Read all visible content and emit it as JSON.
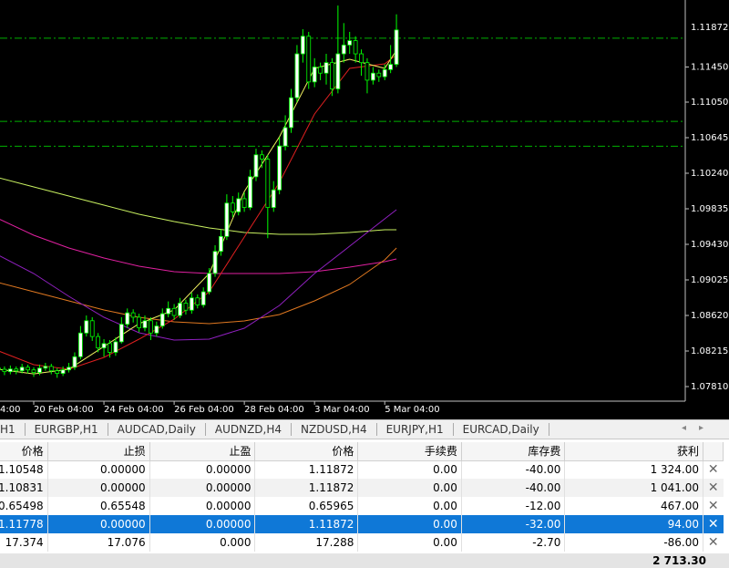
{
  "chart_data": {
    "type": "candlestick",
    "open": [
      1.0802,
      1.08007,
      1.0798,
      1.0801,
      1.0799,
      1.0803,
      1.08,
      1.0797,
      1.0802,
      1.0804,
      1.0799,
      1.0796,
      1.08,
      1.0803,
      1.0815,
      1.0842,
      1.0856,
      1.0838,
      1.0825,
      1.083,
      1.082,
      1.0832,
      1.0852,
      1.0865,
      1.086,
      1.0848,
      1.0856,
      1.0842,
      1.085,
      1.0864,
      1.087,
      1.0862,
      1.0876,
      1.0868,
      1.0882,
      1.0874,
      1.0889,
      1.091,
      1.0935,
      1.0952,
      1.099,
      1.098,
      1.0995,
      1.0985,
      1.102,
      1.1045,
      1.104,
      1.0985,
      1.1005,
      1.1055,
      1.1076,
      1.111,
      1.116,
      1.118,
      1.1128,
      1.1145,
      1.1138,
      1.115,
      1.112,
      1.116,
      1.117,
      1.1175,
      1.116,
      1.115,
      1.113,
      1.1138,
      1.1134,
      1.1142,
      1.1148
    ],
    "high": [
      1.0806,
      1.0804,
      1.0805,
      1.0804,
      1.0807,
      1.0806,
      1.0803,
      1.0806,
      1.0808,
      1.0807,
      1.0802,
      1.0804,
      1.0808,
      1.082,
      1.085,
      1.0862,
      1.086,
      1.0842,
      1.0835,
      1.0834,
      1.0837,
      1.086,
      1.087,
      1.0869,
      1.0864,
      1.0862,
      1.086,
      1.0855,
      1.087,
      1.0878,
      1.0875,
      1.0882,
      1.088,
      1.0888,
      1.0886,
      1.0894,
      1.0916,
      1.0942,
      1.096,
      1.1,
      1.0998,
      1.1002,
      1.1002,
      1.1028,
      1.1052,
      1.105,
      1.1045,
      1.1015,
      1.1065,
      1.109,
      1.112,
      1.117,
      1.1188,
      1.1185,
      1.1155,
      1.115,
      1.116,
      1.1155,
      1.1215,
      1.1195,
      1.1185,
      1.118,
      1.1165,
      1.1155,
      1.1145,
      1.1142,
      1.1148,
      1.117,
      1.1205
    ],
    "low": [
      1.0797,
      1.0794,
      1.0795,
      1.0795,
      1.0796,
      1.0796,
      1.0792,
      1.0794,
      1.0799,
      1.0795,
      1.0791,
      1.0793,
      1.0797,
      1.08,
      1.0812,
      1.0838,
      1.0833,
      1.082,
      1.0815,
      1.0814,
      1.0816,
      1.083,
      1.0848,
      1.0854,
      1.0843,
      1.0844,
      1.0834,
      1.0838,
      1.0847,
      1.086,
      1.0857,
      1.0859,
      1.0863,
      1.0864,
      1.087,
      1.0871,
      1.0886,
      1.0906,
      1.093,
      1.0948,
      1.0974,
      1.0976,
      1.098,
      1.0982,
      1.1015,
      1.103,
      1.095,
      1.098,
      1.1,
      1.105,
      1.107,
      1.1105,
      1.115,
      1.112,
      1.1122,
      1.113,
      1.1125,
      1.1112,
      1.1115,
      1.115,
      1.116,
      1.115,
      1.1135,
      1.1115,
      1.1125,
      1.1128,
      1.113,
      1.1138,
      1.1145
    ],
    "close": [
      1.08007,
      1.0798,
      1.0801,
      1.0799,
      1.0803,
      1.08,
      1.0797,
      1.0802,
      1.0804,
      1.0799,
      1.0796,
      1.08,
      1.0803,
      1.0815,
      1.0842,
      1.0856,
      1.0838,
      1.0825,
      1.083,
      1.082,
      1.0832,
      1.0852,
      1.0865,
      1.086,
      1.0848,
      1.0856,
      1.0842,
      1.085,
      1.0864,
      1.087,
      1.0862,
      1.0876,
      1.0868,
      1.0882,
      1.0874,
      1.0889,
      1.091,
      1.0935,
      1.0952,
      1.099,
      1.098,
      1.0995,
      1.0985,
      1.102,
      1.1045,
      1.104,
      1.0985,
      1.1005,
      1.1055,
      1.1076,
      1.111,
      1.116,
      1.118,
      1.1128,
      1.1145,
      1.1138,
      1.115,
      1.112,
      1.116,
      1.117,
      1.1175,
      1.116,
      1.115,
      1.113,
      1.1138,
      1.1134,
      1.1142,
      1.1148,
      1.11872
    ],
    "ylim": [
      1.07644,
      1.12213
    ],
    "yticks": [
      {
        "value": 1.1145,
        "label": "1.11450"
      },
      {
        "value": 1.1105,
        "label": "1.11050"
      },
      1.10645,
      {
        "value": 1.1024,
        "label": "1.10240"
      },
      1.09835,
      {
        "value": 1.0943,
        "label": "1.09430"
      },
      1.09025,
      {
        "value": 1.0862,
        "label": "1.08620"
      },
      1.08215,
      {
        "value": 1.0781,
        "label": "1.07810"
      }
    ],
    "xticks": [
      {
        "value": 6,
        "label": "20 Feb 04:00"
      },
      {
        "value": 18,
        "label": "24 Feb 04:00"
      },
      {
        "value": 30,
        "label": "26 Feb 04:00"
      },
      {
        "value": 42,
        "label": "28 Feb 04:00"
      },
      {
        "value": 54,
        "label": "3 Mar 04:00"
      },
      {
        "value": 66,
        "label": "5 Mar 04:00"
      }
    ],
    "clipped_x_label": "4:00",
    "price_label": {
      "value": 1.11872,
      "label": "1.11872"
    },
    "levels": [
      1.11778,
      1.10831,
      1.10548
    ],
    "level_color": "#00b000",
    "wick_color": "#00ff00",
    "bull_color": "#ffffff",
    "bear_color": "#000000",
    "moving_averages": [
      {
        "color": "#c8f060",
        "x": [
          0,
          6,
          12,
          18,
          24,
          30,
          36,
          42,
          48,
          54,
          60,
          66,
          68
        ],
        "values": [
          1.10188,
          1.10084,
          1.0998,
          1.09877,
          1.09773,
          1.0969,
          1.09617,
          1.09565,
          1.09544,
          1.09544,
          1.09565,
          1.09596,
          1.09596
        ]
      },
      {
        "color": "#e020a0",
        "x": [
          0,
          6,
          12,
          18,
          24,
          30,
          36,
          42,
          48,
          54,
          60,
          66,
          68
        ],
        "values": [
          1.09721,
          1.09534,
          1.09389,
          1.09274,
          1.09181,
          1.09119,
          1.09098,
          1.09098,
          1.09098,
          1.09119,
          1.0917,
          1.09233,
          1.09264
        ]
      },
      {
        "color": "#e07820",
        "x": [
          0,
          6,
          12,
          18,
          24,
          30,
          36,
          42,
          48,
          54,
          60,
          66,
          68
        ],
        "values": [
          1.08994,
          1.0889,
          1.08786,
          1.08682,
          1.08599,
          1.08547,
          1.08527,
          1.08558,
          1.0863,
          1.08786,
          1.08973,
          1.09254,
          1.09389
        ]
      },
      {
        "color": "#9020c0",
        "x": [
          0,
          6,
          12,
          18,
          24,
          30,
          36,
          42,
          48,
          54,
          60,
          66,
          68
        ],
        "values": [
          1.09305,
          1.09098,
          1.08838,
          1.08599,
          1.08423,
          1.0834,
          1.0835,
          1.08475,
          1.08734,
          1.09098,
          1.09409,
          1.09721,
          1.09825
        ]
      },
      {
        "color": "#e02020",
        "x": [
          0,
          6,
          12,
          18,
          24,
          30,
          36,
          42,
          48,
          54,
          60,
          66,
          68
        ],
        "values": [
          1.08215,
          1.08059,
          1.08007,
          1.08142,
          1.0835,
          1.08578,
          1.0889,
          1.09513,
          1.10136,
          1.10915,
          1.11434,
          1.11486,
          1.1159
        ]
      },
      {
        "color": "#f0f060",
        "x": [
          0,
          6,
          12,
          18,
          24,
          30,
          36,
          42,
          48,
          54,
          60,
          66,
          68
        ],
        "values": [
          1.08007,
          1.07955,
          1.08007,
          1.08267,
          1.08527,
          1.08682,
          1.09098,
          1.10032,
          1.10655,
          1.11434,
          1.11538,
          1.11434,
          1.11642
        ]
      }
    ]
  },
  "tabs": [
    "H1",
    "EURGBP,H1",
    "AUDCAD,Daily",
    "AUDNZD,H4",
    "NZDUSD,H4",
    "EURJPY,H1",
    "EURCAD,Daily"
  ],
  "table": {
    "headers": [
      "价格",
      "止损",
      "止盈",
      "价格",
      "手续费",
      "库存费",
      "获利"
    ],
    "rows": [
      [
        "1.10548",
        "0.00000",
        "0.00000",
        "1.11872",
        "0.00",
        "-40.00",
        "1 324.00"
      ],
      [
        "1.10831",
        "0.00000",
        "0.00000",
        "1.11872",
        "0.00",
        "-40.00",
        "1 041.00"
      ],
      [
        "0.65498",
        "0.65548",
        "0.00000",
        "0.65965",
        "0.00",
        "-12.00",
        "467.00"
      ],
      [
        "1.11778",
        "0.00000",
        "0.00000",
        "1.11872",
        "0.00",
        "-32.00",
        "94.00"
      ],
      [
        "17.374",
        "17.076",
        "0.000",
        "17.288",
        "0.00",
        "-2.70",
        "-86.00"
      ]
    ],
    "selected_row": 3,
    "total": "2 713.30"
  }
}
